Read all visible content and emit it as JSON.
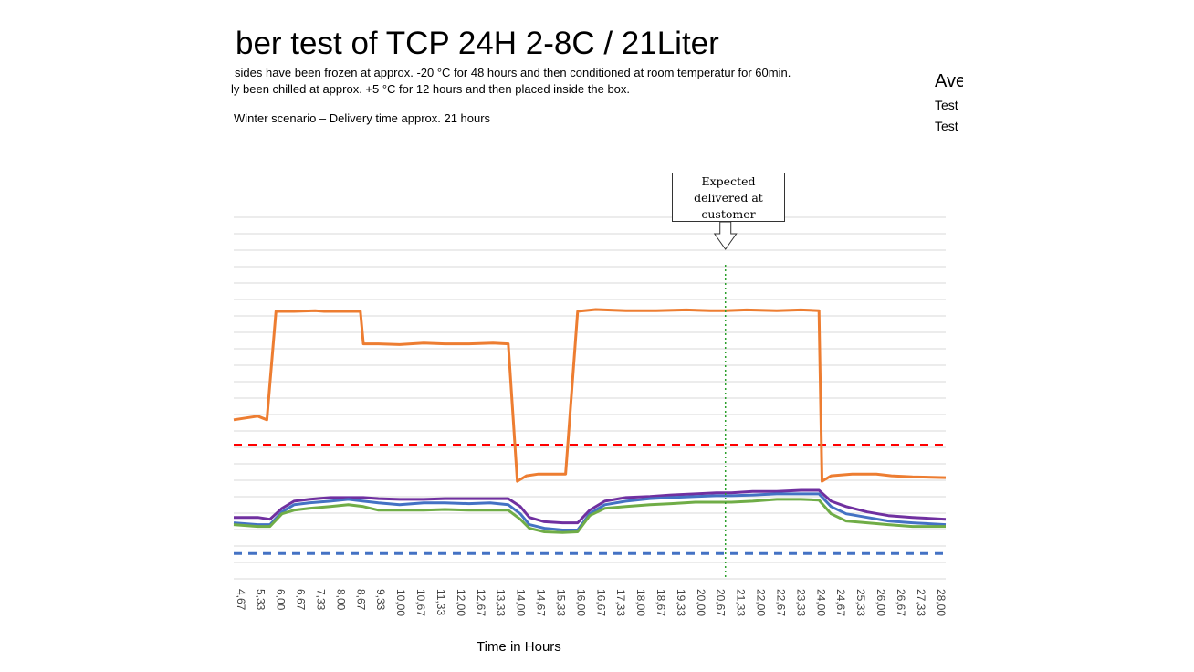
{
  "header": {
    "title": "ber test of TCP 24H 2-8C / 21Liter",
    "line1": "sides have been frozen at approx. -20 °C for 48 hours and then conditioned at room temperatur for 60min.",
    "line2": "ly been chilled at approx. +5 °C for 12 hours and then placed inside the box.",
    "line3": "Winter scenario – Delivery time approx. 21 hours"
  },
  "right_panel": {
    "heading": "Ave",
    "item1": "Test",
    "item2": "Test"
  },
  "annotation": {
    "line1": "Expected",
    "line2": "delivered at",
    "line3": "customer"
  },
  "colors": {
    "orange": "#ED7D31",
    "blue": "#4472C4",
    "green": "#70AD47",
    "purple": "#7030A0",
    "red_dashed": "#FF0000",
    "blue_dashed": "#4472C4",
    "marker": "#2CA02C"
  },
  "chart_data": {
    "type": "line",
    "title": "",
    "xlabel": "Time in Hours",
    "ylabel": "",
    "grid": true,
    "x_ticks": [
      "4,67",
      "5,33",
      "6,00",
      "6,67",
      "7,33",
      "8,00",
      "8,67",
      "9,33",
      "10,00",
      "10,67",
      "11,33",
      "12,00",
      "12,67",
      "13,33",
      "14,00",
      "14,67",
      "15,33",
      "16,00",
      "16,67",
      "17,33",
      "18,00",
      "18,67",
      "19,33",
      "20,00",
      "20,67",
      "21,33",
      "22,00",
      "22,67",
      "23,33",
      "24,00",
      "24,67",
      "25,33",
      "26,00",
      "26,67",
      "27,33",
      "28,00"
    ],
    "xlim": [
      4.5,
      28.1
    ],
    "ylim": [
      0,
      1
    ],
    "expected_delivery_x": 20.8,
    "series": [
      {
        "color": "orange",
        "values": [
          [
            4.5,
            0.44
          ],
          [
            4.9,
            0.445
          ],
          [
            5.3,
            0.45
          ],
          [
            5.6,
            0.44
          ],
          [
            5.9,
            0.74
          ],
          [
            6.5,
            0.74
          ],
          [
            7.2,
            0.742
          ],
          [
            7.5,
            0.74
          ],
          [
            7.9,
            0.74
          ],
          [
            8.7,
            0.74
          ],
          [
            8.8,
            0.65
          ],
          [
            9.3,
            0.65
          ],
          [
            10.0,
            0.648
          ],
          [
            10.8,
            0.652
          ],
          [
            11.5,
            0.65
          ],
          [
            12.3,
            0.65
          ],
          [
            13.1,
            0.652
          ],
          [
            13.6,
            0.65
          ],
          [
            13.9,
            0.27
          ],
          [
            14.2,
            0.285
          ],
          [
            14.6,
            0.29
          ],
          [
            15.0,
            0.29
          ],
          [
            15.5,
            0.29
          ],
          [
            15.9,
            0.74
          ],
          [
            16.5,
            0.745
          ],
          [
            17.5,
            0.742
          ],
          [
            18.5,
            0.742
          ],
          [
            19.5,
            0.744
          ],
          [
            20.3,
            0.742
          ],
          [
            20.8,
            0.742
          ],
          [
            21.5,
            0.744
          ],
          [
            22.5,
            0.742
          ],
          [
            23.3,
            0.744
          ],
          [
            23.9,
            0.742
          ],
          [
            24.0,
            0.27
          ],
          [
            24.3,
            0.285
          ],
          [
            25.0,
            0.29
          ],
          [
            25.8,
            0.29
          ],
          [
            26.3,
            0.285
          ],
          [
            27.0,
            0.282
          ],
          [
            28.1,
            0.28
          ]
        ]
      },
      {
        "color": "purple",
        "values": [
          [
            4.5,
            0.17
          ],
          [
            5.3,
            0.17
          ],
          [
            5.7,
            0.165
          ],
          [
            6.1,
            0.195
          ],
          [
            6.5,
            0.215
          ],
          [
            7.0,
            0.22
          ],
          [
            7.7,
            0.225
          ],
          [
            8.3,
            0.225
          ],
          [
            8.8,
            0.225
          ],
          [
            9.3,
            0.222
          ],
          [
            10.0,
            0.22
          ],
          [
            10.8,
            0.22
          ],
          [
            11.5,
            0.222
          ],
          [
            12.3,
            0.222
          ],
          [
            13.0,
            0.222
          ],
          [
            13.6,
            0.222
          ],
          [
            14.0,
            0.2
          ],
          [
            14.3,
            0.17
          ],
          [
            14.8,
            0.158
          ],
          [
            15.4,
            0.155
          ],
          [
            15.9,
            0.155
          ],
          [
            16.3,
            0.19
          ],
          [
            16.8,
            0.215
          ],
          [
            17.5,
            0.225
          ],
          [
            18.3,
            0.228
          ],
          [
            19.0,
            0.232
          ],
          [
            19.8,
            0.235
          ],
          [
            20.5,
            0.238
          ],
          [
            21.0,
            0.238
          ],
          [
            21.7,
            0.242
          ],
          [
            22.5,
            0.242
          ],
          [
            23.3,
            0.245
          ],
          [
            23.9,
            0.245
          ],
          [
            24.3,
            0.215
          ],
          [
            24.8,
            0.2
          ],
          [
            25.5,
            0.185
          ],
          [
            26.2,
            0.175
          ],
          [
            27.0,
            0.17
          ],
          [
            28.1,
            0.165
          ]
        ]
      },
      {
        "color": "blue",
        "values": [
          [
            4.5,
            0.155
          ],
          [
            5.3,
            0.15
          ],
          [
            5.7,
            0.15
          ],
          [
            6.1,
            0.185
          ],
          [
            6.5,
            0.205
          ],
          [
            7.0,
            0.21
          ],
          [
            7.7,
            0.215
          ],
          [
            8.3,
            0.22
          ],
          [
            8.8,
            0.215
          ],
          [
            9.3,
            0.21
          ],
          [
            10.0,
            0.205
          ],
          [
            10.8,
            0.21
          ],
          [
            11.5,
            0.21
          ],
          [
            12.3,
            0.208
          ],
          [
            13.0,
            0.21
          ],
          [
            13.6,
            0.205
          ],
          [
            14.0,
            0.18
          ],
          [
            14.3,
            0.15
          ],
          [
            14.8,
            0.14
          ],
          [
            15.4,
            0.135
          ],
          [
            15.9,
            0.135
          ],
          [
            16.3,
            0.18
          ],
          [
            16.8,
            0.205
          ],
          [
            17.5,
            0.215
          ],
          [
            18.3,
            0.222
          ],
          [
            19.0,
            0.225
          ],
          [
            19.8,
            0.228
          ],
          [
            20.5,
            0.23
          ],
          [
            21.0,
            0.23
          ],
          [
            21.7,
            0.232
          ],
          [
            22.5,
            0.235
          ],
          [
            23.3,
            0.235
          ],
          [
            23.9,
            0.235
          ],
          [
            24.3,
            0.2
          ],
          [
            24.8,
            0.18
          ],
          [
            25.5,
            0.17
          ],
          [
            26.2,
            0.16
          ],
          [
            27.0,
            0.155
          ],
          [
            28.1,
            0.15
          ]
        ]
      },
      {
        "color": "green",
        "values": [
          [
            4.5,
            0.15
          ],
          [
            5.3,
            0.145
          ],
          [
            5.7,
            0.145
          ],
          [
            6.1,
            0.18
          ],
          [
            6.5,
            0.19
          ],
          [
            7.0,
            0.195
          ],
          [
            7.7,
            0.2
          ],
          [
            8.3,
            0.205
          ],
          [
            8.8,
            0.2
          ],
          [
            9.3,
            0.19
          ],
          [
            10.0,
            0.19
          ],
          [
            10.8,
            0.19
          ],
          [
            11.5,
            0.192
          ],
          [
            12.3,
            0.19
          ],
          [
            13.0,
            0.19
          ],
          [
            13.6,
            0.19
          ],
          [
            14.0,
            0.165
          ],
          [
            14.3,
            0.14
          ],
          [
            14.8,
            0.13
          ],
          [
            15.4,
            0.128
          ],
          [
            15.9,
            0.13
          ],
          [
            16.3,
            0.175
          ],
          [
            16.8,
            0.195
          ],
          [
            17.5,
            0.2
          ],
          [
            18.3,
            0.205
          ],
          [
            19.0,
            0.208
          ],
          [
            19.8,
            0.212
          ],
          [
            20.5,
            0.212
          ],
          [
            21.0,
            0.212
          ],
          [
            21.7,
            0.215
          ],
          [
            22.5,
            0.22
          ],
          [
            23.3,
            0.22
          ],
          [
            23.9,
            0.218
          ],
          [
            24.3,
            0.18
          ],
          [
            24.8,
            0.16
          ],
          [
            25.5,
            0.155
          ],
          [
            26.2,
            0.15
          ],
          [
            27.0,
            0.145
          ],
          [
            28.1,
            0.145
          ]
        ]
      }
    ],
    "reference_lines": [
      {
        "color": "red_dashed",
        "y": 0.37
      },
      {
        "color": "blue_dashed",
        "y": 0.07
      }
    ]
  }
}
